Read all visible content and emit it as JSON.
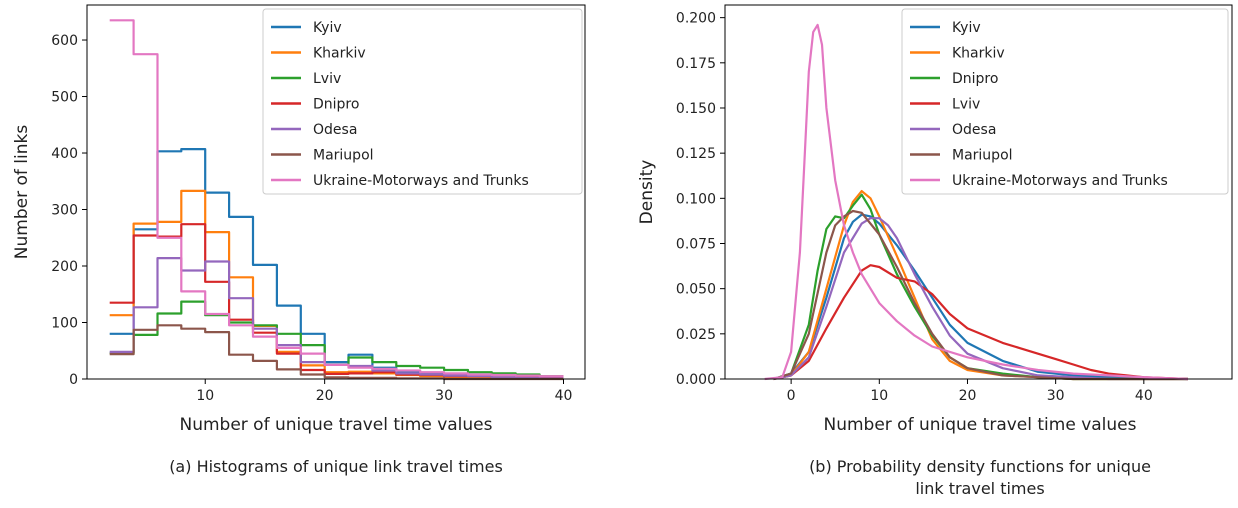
{
  "chart_data": [
    {
      "type": "line",
      "subtype": "step-histogram",
      "title": "",
      "xlabel": "Number of unique travel time values",
      "ylabel": "Number of links",
      "xlim": [
        0.1,
        41.8
      ],
      "ylim": [
        0,
        662
      ],
      "xticks": [
        "10",
        "20",
        "30",
        "40"
      ],
      "yticks": [
        "0",
        "100",
        "200",
        "300",
        "400",
        "500",
        "600"
      ],
      "legend_position": "top-right",
      "grid": false,
      "bin_edges": [
        2,
        4,
        6,
        8,
        10,
        12,
        14,
        16,
        18,
        20,
        22,
        24,
        26,
        28,
        30,
        32,
        34,
        36,
        38,
        40
      ],
      "series": [
        {
          "name": "Kyiv",
          "color": "#1f77b4",
          "values": [
            80,
            265,
            403,
            407,
            330,
            287,
            202,
            130,
            80,
            30,
            43,
            20,
            12,
            10,
            7,
            8,
            8,
            5,
            3
          ]
        },
        {
          "name": "Kharkiv",
          "color": "#ff7f0e",
          "values": [
            113,
            275,
            278,
            333,
            260,
            180,
            94,
            48,
            24,
            12,
            13,
            10,
            7,
            5,
            3,
            3,
            2,
            1,
            1
          ]
        },
        {
          "name": "Lviv",
          "color": "#2ca02c",
          "values": [
            46,
            78,
            116,
            137,
            113,
            100,
            95,
            80,
            60,
            25,
            38,
            30,
            23,
            20,
            16,
            12,
            10,
            8,
            5
          ]
        },
        {
          "name": "Dnipro",
          "color": "#d62728",
          "values": [
            135,
            254,
            252,
            274,
            172,
            105,
            82,
            45,
            16,
            9,
            10,
            12,
            8,
            7,
            5,
            5,
            3,
            3,
            2
          ]
        },
        {
          "name": "Odesa",
          "color": "#9467bd",
          "values": [
            48,
            127,
            214,
            192,
            208,
            143,
            89,
            60,
            30,
            25,
            23,
            15,
            10,
            8,
            6,
            5,
            3,
            2,
            1
          ]
        },
        {
          "name": "Mariupol",
          "color": "#8c564b",
          "values": [
            44,
            87,
            95,
            89,
            83,
            43,
            32,
            17,
            8,
            3,
            2,
            2,
            1,
            1,
            0,
            0,
            0,
            0,
            0
          ]
        },
        {
          "name": "Ukraine-Motorways and Trunks",
          "color": "#e377c2",
          "values": [
            635,
            575,
            250,
            155,
            115,
            95,
            75,
            55,
            45,
            25,
            20,
            18,
            15,
            12,
            10,
            8,
            7,
            6,
            5
          ]
        }
      ]
    },
    {
      "type": "line",
      "subtype": "density",
      "title": "",
      "xlabel": "Number of unique travel time values",
      "ylabel": "Density",
      "xlim": [
        -7.5,
        50
      ],
      "ylim": [
        0,
        0.207
      ],
      "xticks": [
        "0",
        "10",
        "20",
        "30",
        "40"
      ],
      "yticks": [
        "0.000",
        "0.025",
        "0.050",
        "0.075",
        "0.100",
        "0.125",
        "0.150",
        "0.175",
        "0.200"
      ],
      "legend_position": "top-right",
      "grid": false,
      "series": [
        {
          "name": "Kyiv",
          "color": "#1f77b4",
          "x": [
            -2,
            0,
            2,
            4,
            6,
            7,
            8,
            9,
            10,
            12,
            14,
            16,
            18,
            20,
            24,
            28,
            32,
            36,
            40,
            45
          ],
          "y": [
            0,
            0.003,
            0.015,
            0.045,
            0.078,
            0.087,
            0.091,
            0.09,
            0.086,
            0.074,
            0.06,
            0.045,
            0.03,
            0.02,
            0.01,
            0.004,
            0.002,
            0.001,
            0.0005,
            0
          ]
        },
        {
          "name": "Kharkiv",
          "color": "#ff7f0e",
          "x": [
            -2,
            0,
            2,
            4,
            6,
            7,
            8,
            9,
            10,
            12,
            14,
            16,
            18,
            20,
            24,
            28,
            32,
            36,
            40,
            45
          ],
          "y": [
            0,
            0.002,
            0.015,
            0.05,
            0.085,
            0.098,
            0.104,
            0.1,
            0.09,
            0.068,
            0.045,
            0.022,
            0.01,
            0.005,
            0.002,
            0.001,
            0,
            0,
            0,
            0
          ]
        },
        {
          "name": "Dnipro",
          "color": "#2ca02c",
          "x": [
            -2,
            0,
            2,
            3,
            4,
            5,
            6,
            7,
            8,
            9,
            10,
            12,
            14,
            16,
            18,
            20,
            24,
            28,
            32,
            36,
            40,
            45
          ],
          "y": [
            0,
            0.003,
            0.03,
            0.06,
            0.083,
            0.09,
            0.089,
            0.096,
            0.102,
            0.094,
            0.08,
            0.058,
            0.04,
            0.024,
            0.012,
            0.006,
            0.003,
            0.001,
            0,
            0,
            0,
            0
          ]
        },
        {
          "name": "Lviv",
          "color": "#d62728",
          "x": [
            -2,
            0,
            2,
            4,
            6,
            8,
            9,
            10,
            12,
            14,
            16,
            18,
            20,
            22,
            24,
            26,
            28,
            30,
            32,
            34,
            36,
            38,
            40,
            45
          ],
          "y": [
            0,
            0.002,
            0.01,
            0.028,
            0.045,
            0.06,
            0.063,
            0.062,
            0.056,
            0.054,
            0.047,
            0.036,
            0.028,
            0.024,
            0.02,
            0.017,
            0.014,
            0.011,
            0.008,
            0.005,
            0.003,
            0.002,
            0.001,
            0
          ]
        },
        {
          "name": "Odesa",
          "color": "#9467bd",
          "x": [
            -2,
            0,
            2,
            4,
            6,
            8,
            9,
            10,
            11,
            12,
            14,
            16,
            18,
            20,
            24,
            28,
            32,
            36,
            40,
            45
          ],
          "y": [
            0,
            0.002,
            0.012,
            0.04,
            0.07,
            0.086,
            0.089,
            0.089,
            0.085,
            0.078,
            0.058,
            0.04,
            0.024,
            0.014,
            0.006,
            0.002,
            0.001,
            0,
            0,
            0
          ]
        },
        {
          "name": "Mariupol",
          "color": "#8c564b",
          "x": [
            -2,
            0,
            2,
            4,
            5,
            6,
            7,
            8,
            10,
            12,
            14,
            16,
            18,
            20,
            24,
            28,
            32,
            36,
            40,
            45
          ],
          "y": [
            0,
            0.003,
            0.025,
            0.07,
            0.085,
            0.09,
            0.093,
            0.092,
            0.08,
            0.062,
            0.042,
            0.025,
            0.012,
            0.006,
            0.002,
            0.001,
            0,
            0,
            0,
            0
          ]
        },
        {
          "name": "Ukraine-Motorways and Trunks",
          "color": "#e377c2",
          "x": [
            -3,
            -1,
            0,
            1,
            1.5,
            2,
            2.5,
            3,
            3.5,
            4,
            5,
            6,
            7,
            8,
            10,
            12,
            14,
            16,
            20,
            24,
            28,
            32,
            36,
            40,
            45
          ],
          "y": [
            0,
            0.001,
            0.015,
            0.07,
            0.12,
            0.17,
            0.192,
            0.196,
            0.185,
            0.15,
            0.11,
            0.085,
            0.07,
            0.058,
            0.042,
            0.032,
            0.024,
            0.018,
            0.012,
            0.008,
            0.005,
            0.003,
            0.002,
            0.001,
            0
          ]
        }
      ]
    }
  ],
  "captions": {
    "a": "(a) Histograms of unique link travel times",
    "b_line1": "(b) Probability density functions for unique",
    "b_line2": "link travel times"
  }
}
